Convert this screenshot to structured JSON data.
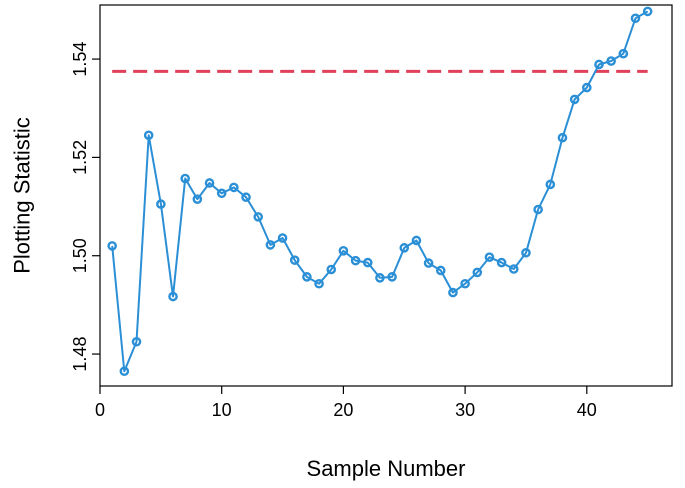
{
  "chart_data": {
    "type": "line",
    "xlabel": "Sample Number",
    "ylabel": "Plotting Statistic",
    "xlim": [
      0,
      47
    ],
    "ylim": [
      1.4735,
      1.551
    ],
    "xticks": [
      0,
      10,
      20,
      30,
      40
    ],
    "yticks": [
      1.48,
      1.5,
      1.52,
      1.54
    ],
    "ytick_labels": [
      "1.48",
      "1.50",
      "1.52",
      "1.54"
    ],
    "grid": false,
    "series": [
      {
        "color": "#2b8fd6",
        "x": [
          1,
          2,
          3,
          4,
          5,
          6,
          7,
          8,
          9,
          10,
          11,
          12,
          13,
          14,
          15,
          16,
          17,
          18,
          19,
          20,
          21,
          22,
          23,
          24,
          25,
          26,
          27,
          28,
          29,
          30,
          31,
          32,
          33,
          34,
          35,
          36,
          37,
          38,
          39,
          40,
          41,
          42,
          43,
          44,
          45
        ],
        "y": [
          1.502,
          1.4765,
          1.4825,
          1.5245,
          1.5105,
          1.4917,
          1.5157,
          1.5115,
          1.5148,
          1.5127,
          1.5139,
          1.5119,
          1.5079,
          1.5022,
          1.5036,
          1.4991,
          1.4957,
          1.4943,
          1.4972,
          1.501,
          1.499,
          1.4986,
          1.4955,
          1.4957,
          1.5016,
          1.5031,
          1.4985,
          1.497,
          1.4925,
          1.4943,
          1.4966,
          1.4997,
          1.4986,
          1.4973,
          1.5006,
          1.5094,
          1.5145,
          1.524,
          1.5318,
          1.5342,
          1.5389,
          1.5396,
          1.5411,
          1.5483,
          1.5497
        ]
      }
    ],
    "reference_line": {
      "y": 1.5375,
      "x_start": 1,
      "x_end": 45,
      "color": "#e0405a"
    }
  }
}
